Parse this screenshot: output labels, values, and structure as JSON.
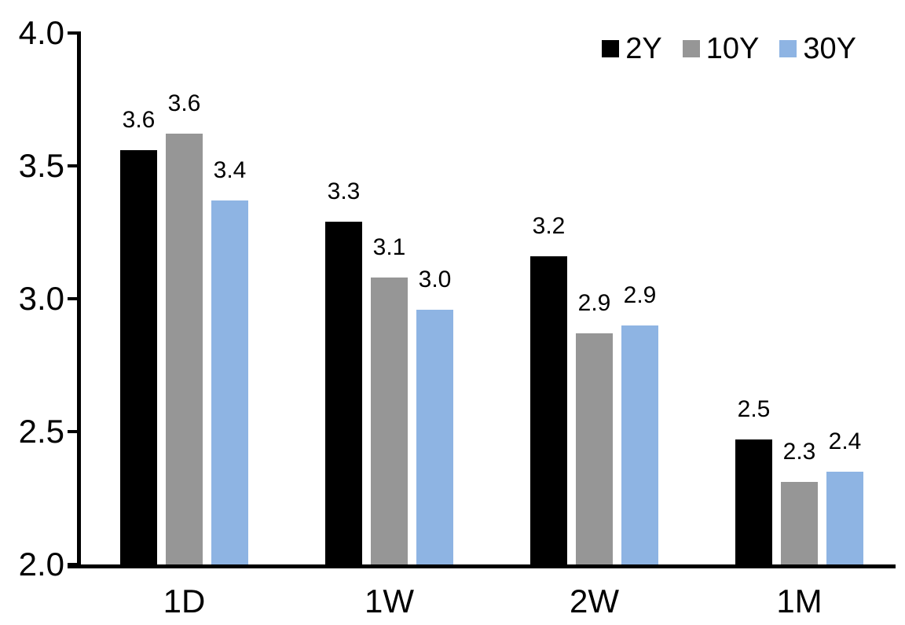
{
  "chart_data": {
    "type": "bar",
    "title": "",
    "xlabel": "",
    "ylabel": "",
    "categories": [
      "1D",
      "1W",
      "2W",
      "1M"
    ],
    "series": [
      {
        "name": "2Y",
        "color": "#000000",
        "values": [
          3.56,
          3.29,
          3.16,
          2.47
        ],
        "data_labels": [
          "3.6",
          "3.3",
          "3.2",
          "2.5"
        ]
      },
      {
        "name": "10Y",
        "color": "#969696",
        "values": [
          3.62,
          3.08,
          2.87,
          2.31
        ],
        "data_labels": [
          "3.6",
          "3.1",
          "2.9",
          "2.3"
        ]
      },
      {
        "name": "30Y",
        "color": "#8EB4E3",
        "values": [
          3.37,
          2.96,
          2.9,
          2.35
        ],
        "data_labels": [
          "3.4",
          "3.0",
          "2.9",
          "2.4"
        ]
      }
    ],
    "y_axis": {
      "min": 2.0,
      "max": 4.0,
      "tick_interval": 0.5,
      "tick_labels": [
        "4.0",
        "3.5",
        "3.0",
        "2.5",
        "2.0"
      ],
      "tick_values": [
        4.0,
        3.5,
        3.0,
        2.5,
        2.0
      ]
    },
    "legend": {
      "position": "top-right",
      "entries": [
        "2Y",
        "10Y",
        "30Y"
      ]
    },
    "grid": false,
    "colors": {
      "axis": "#000000",
      "text": "#000000",
      "background": "#FFFFFF"
    }
  }
}
